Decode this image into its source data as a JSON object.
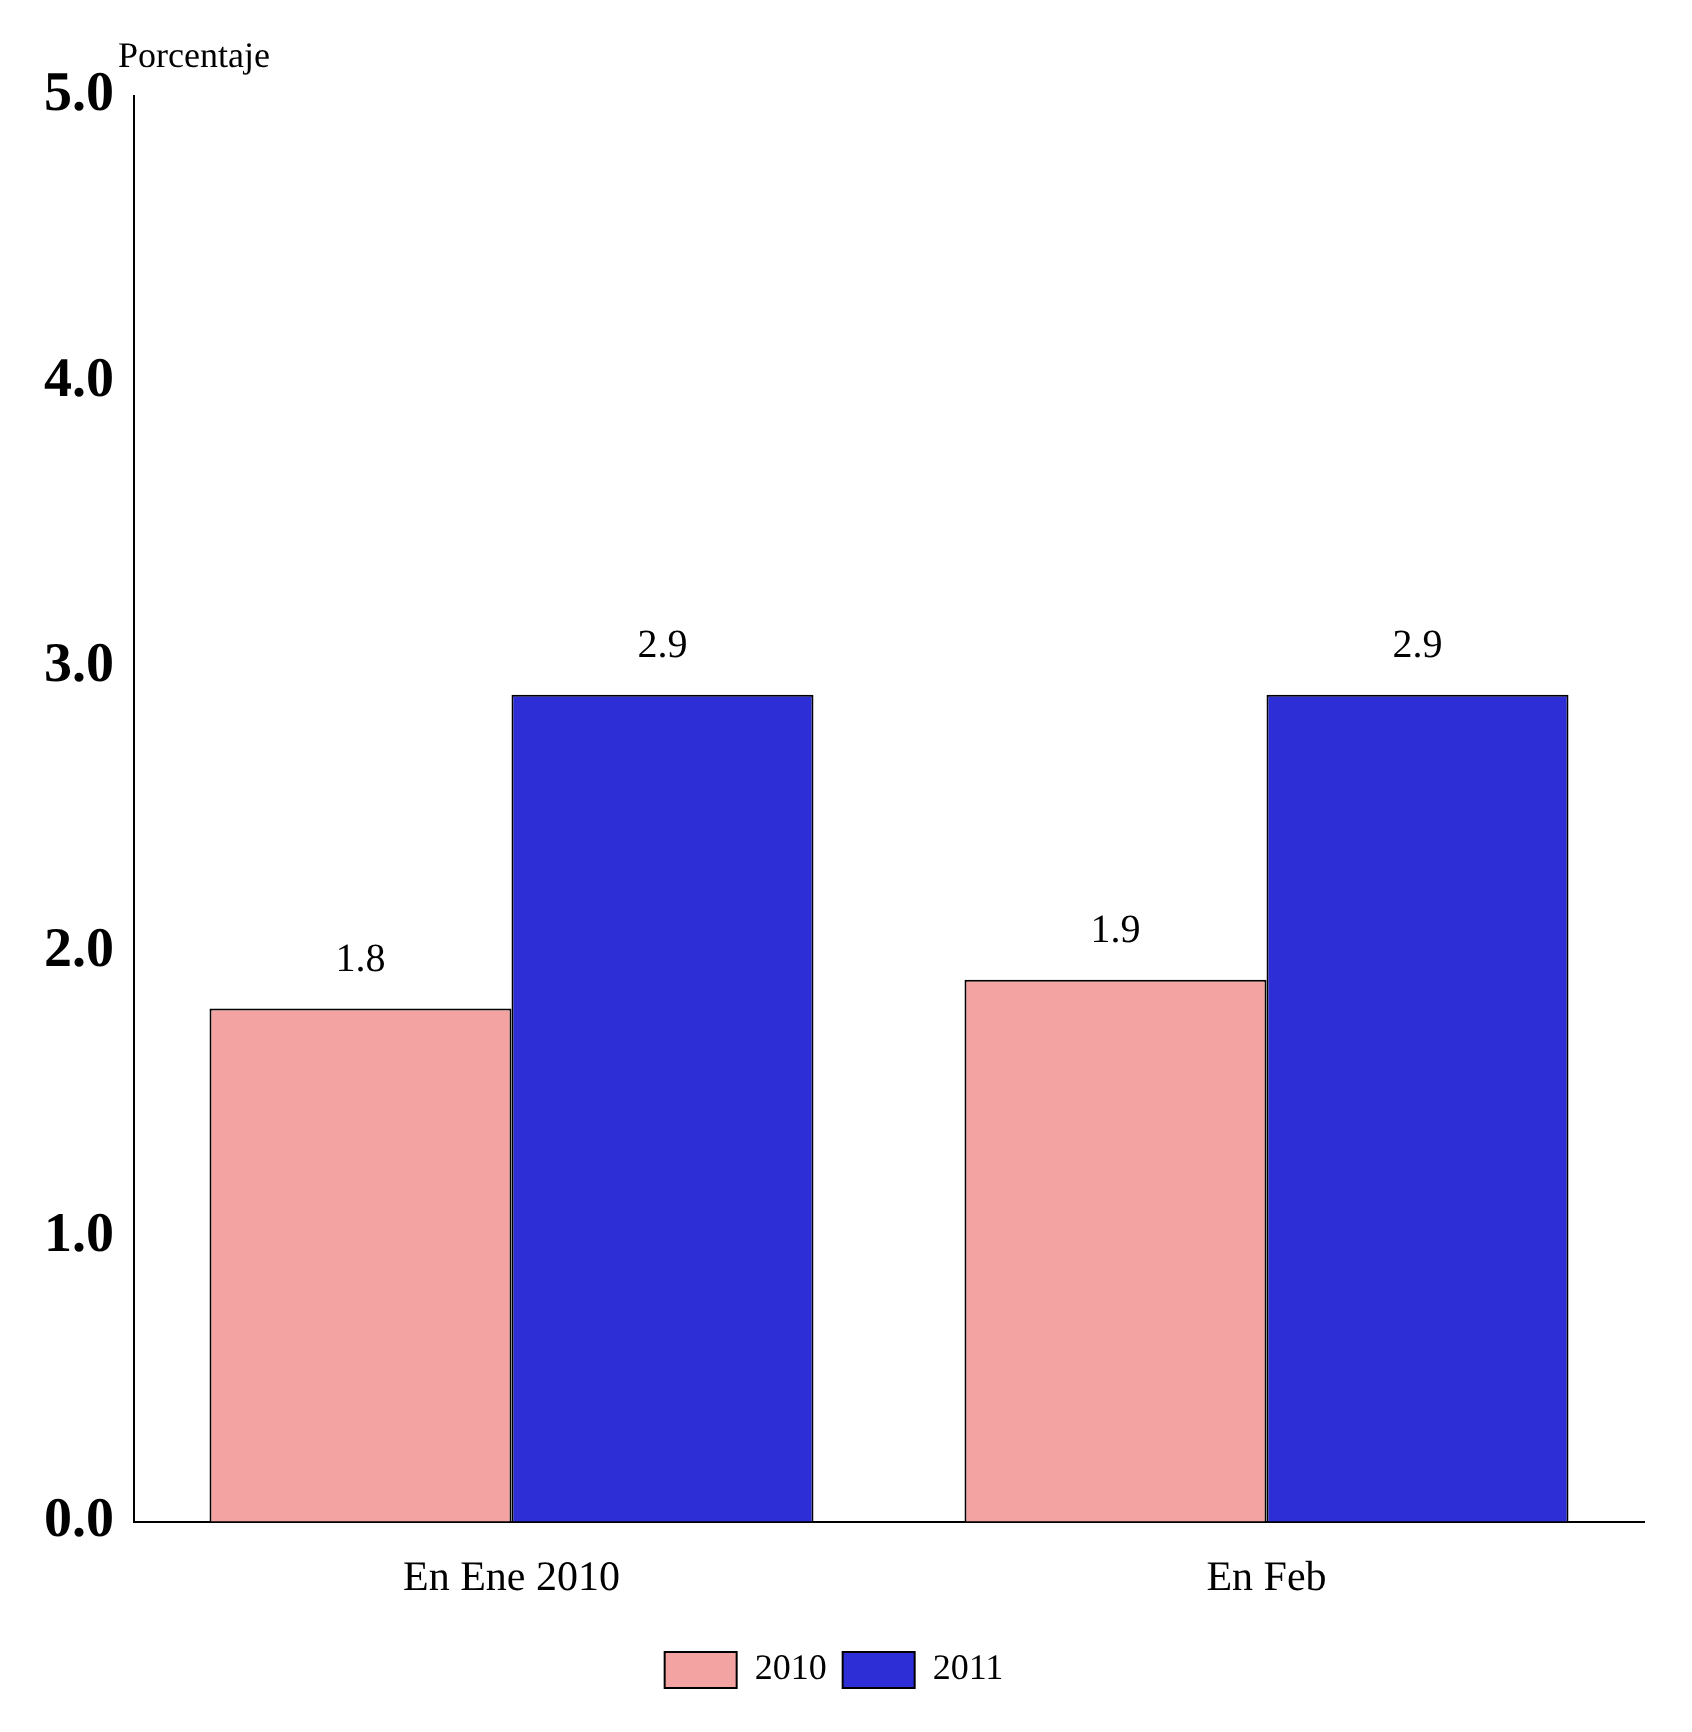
{
  "chart_data": {
    "type": "bar",
    "ylabel": "Porcentaje",
    "categories": [
      "En Ene 2010",
      "En Feb"
    ],
    "series": [
      {
        "name": "2010",
        "color": "#f4a3a3",
        "values": [
          1.8,
          1.9
        ]
      },
      {
        "name": "2011",
        "color": "#2e2ed6",
        "values": [
          2.9,
          2.9
        ]
      }
    ],
    "ylim": [
      0,
      5
    ],
    "yticks": [
      {
        "value": 0,
        "label": "0.0"
      },
      {
        "value": 1,
        "label": "1.0"
      },
      {
        "value": 2,
        "label": "2.0"
      },
      {
        "value": 3,
        "label": "3.0"
      },
      {
        "value": 4,
        "label": "4.0"
      },
      {
        "value": 5,
        "label": "5.0"
      }
    ],
    "grid": false,
    "legend": "bottom",
    "data_labels": true
  }
}
